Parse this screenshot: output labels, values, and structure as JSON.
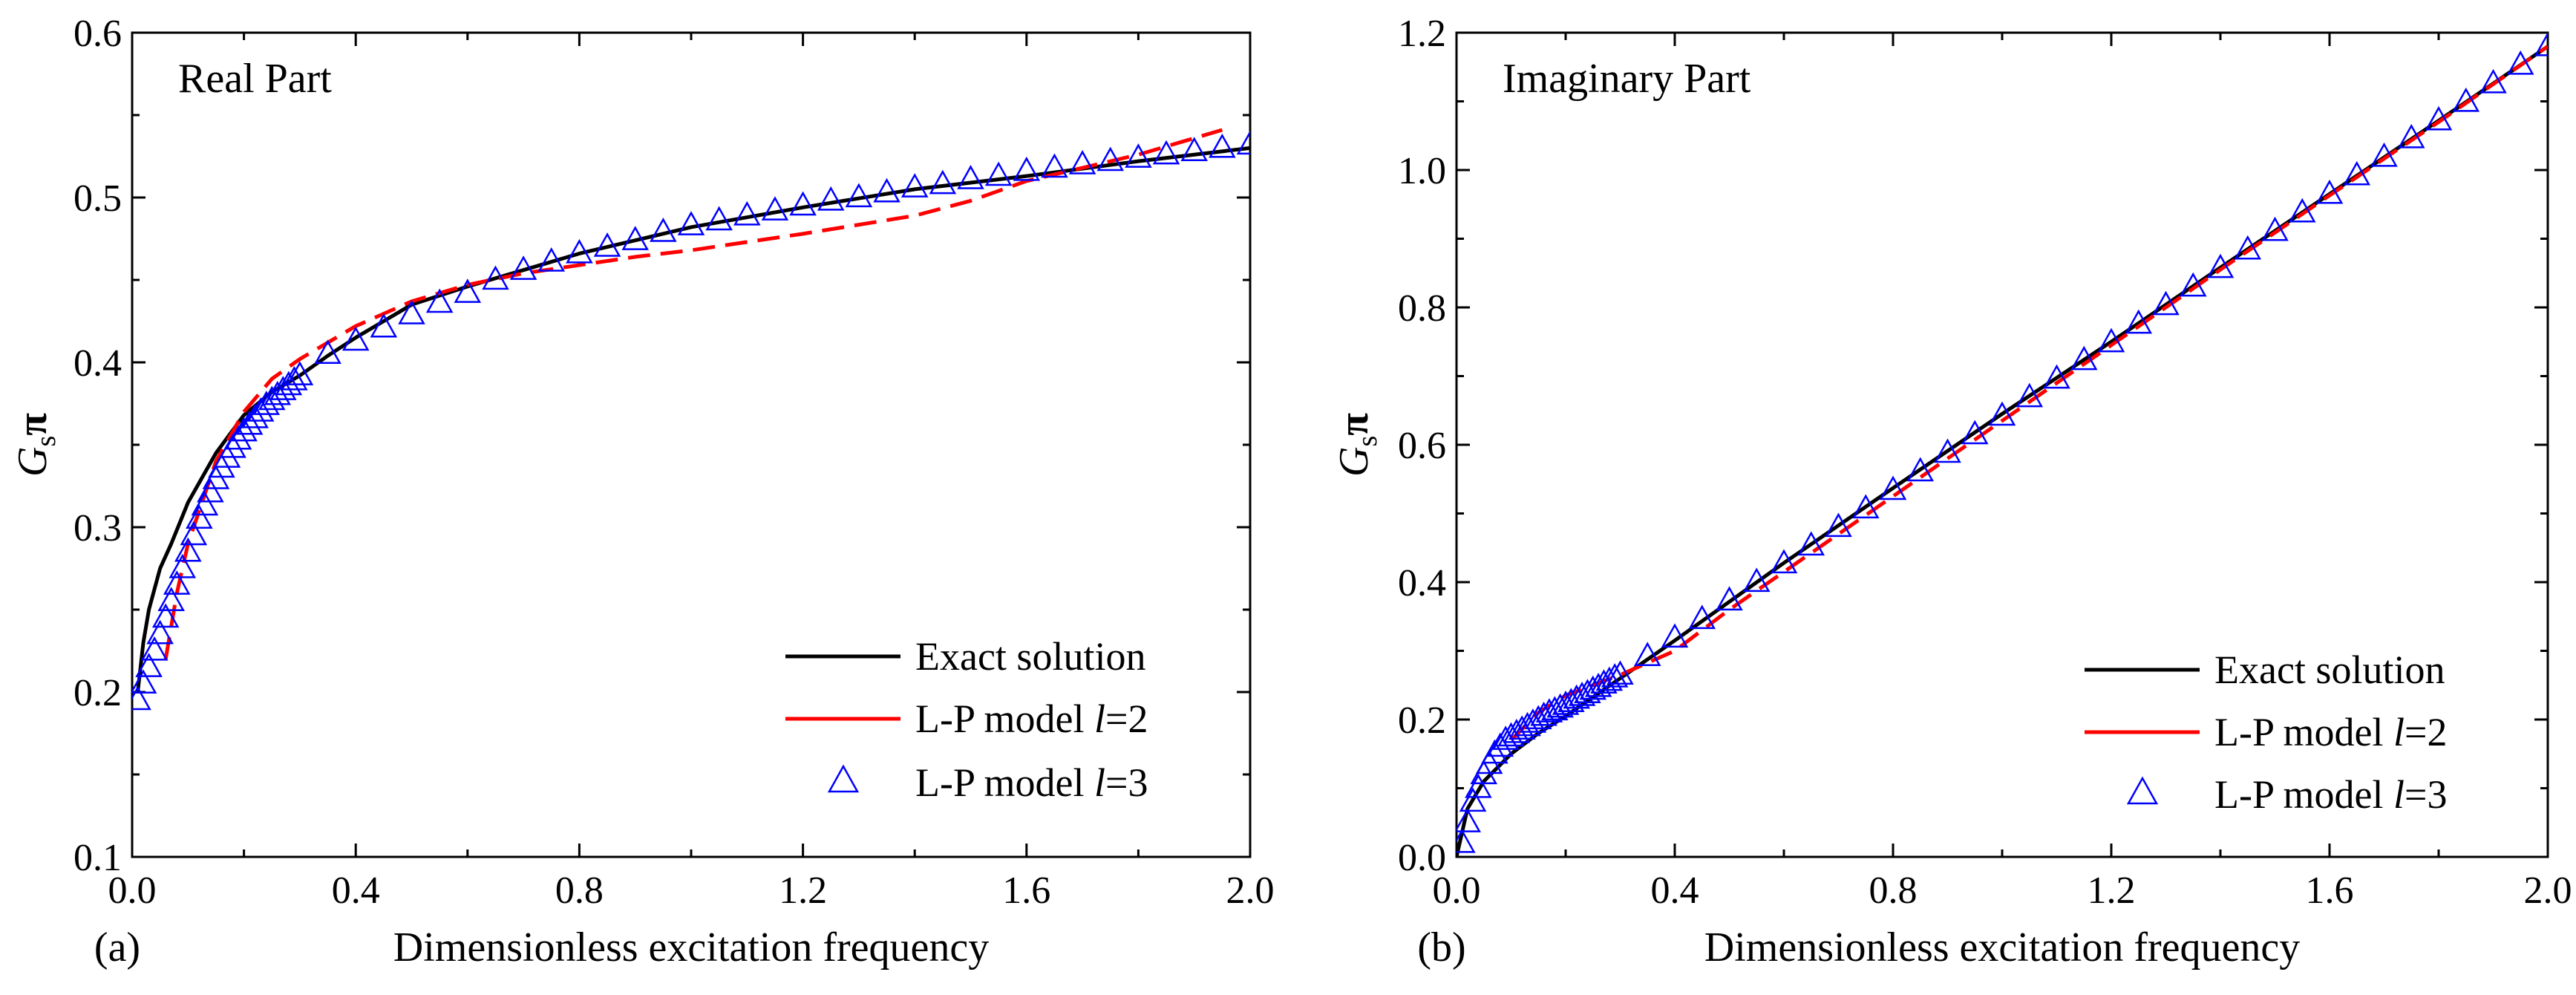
{
  "chart_data": [
    {
      "type": "line",
      "panel_label": "(a)",
      "annotation": "Real Part",
      "xlabel": "Dimensionless excitation frequency",
      "ylabel": "G",
      "ylabel_sub": "s",
      "ylabel_suffix": "π",
      "xlim": [
        0,
        2.0
      ],
      "ylim": [
        0.1,
        0.6
      ],
      "xticks": [
        "0.0",
        "0.4",
        "0.8",
        "1.2",
        "1.6",
        "2.0"
      ],
      "yticks": [
        "0.1",
        "0.2",
        "0.3",
        "0.4",
        "0.5",
        "0.6"
      ],
      "legend_position": "bottom-right",
      "series": [
        {
          "name": "Exact solution",
          "legend_prefix": "Exact solution",
          "legend_italic": "",
          "legend_suffix": "",
          "style": "solid",
          "color": "#000000",
          "x": [
            0.01,
            0.02,
            0.03,
            0.05,
            0.07,
            0.1,
            0.15,
            0.2,
            0.25,
            0.3,
            0.35,
            0.4,
            0.5,
            0.6,
            0.7,
            0.8,
            0.9,
            1.0,
            1.2,
            1.4,
            1.6,
            1.8,
            2.0
          ],
          "y": [
            0.2,
            0.23,
            0.25,
            0.275,
            0.29,
            0.315,
            0.345,
            0.368,
            0.382,
            0.392,
            0.404,
            0.415,
            0.435,
            0.446,
            0.456,
            0.466,
            0.474,
            0.482,
            0.494,
            0.505,
            0.513,
            0.522,
            0.53
          ]
        },
        {
          "name": "L-P model l=2",
          "legend_prefix": "L-P model ",
          "legend_italic": "l",
          "legend_suffix": "=2",
          "style": "dashed",
          "color": "#ff0000",
          "x": [
            0.06,
            0.08,
            0.1,
            0.15,
            0.2,
            0.25,
            0.3,
            0.4,
            0.5,
            0.6,
            0.7,
            0.8,
            0.9,
            1.0,
            1.2,
            1.4,
            1.5,
            1.6,
            1.7,
            1.8,
            1.95
          ],
          "y": [
            0.22,
            0.26,
            0.29,
            0.34,
            0.37,
            0.39,
            0.402,
            0.422,
            0.437,
            0.447,
            0.454,
            0.459,
            0.464,
            0.468,
            0.478,
            0.489,
            0.498,
            0.51,
            0.518,
            0.526,
            0.541
          ]
        },
        {
          "name": "L-P model l=3",
          "legend_prefix": "L-P model ",
          "legend_italic": "l",
          "legend_suffix": "=3",
          "style": "triangle",
          "color": "#0000ff",
          "x": [
            0.01,
            0.02,
            0.03,
            0.04,
            0.05,
            0.06,
            0.07,
            0.08,
            0.09,
            0.1,
            0.11,
            0.12,
            0.13,
            0.14,
            0.15,
            0.16,
            0.17,
            0.18,
            0.19,
            0.2,
            0.21,
            0.22,
            0.23,
            0.24,
            0.25,
            0.26,
            0.27,
            0.28,
            0.29,
            0.3,
            0.35,
            0.4,
            0.45,
            0.5,
            0.55,
            0.6,
            0.65,
            0.7,
            0.75,
            0.8,
            0.85,
            0.9,
            0.95,
            1.0,
            1.05,
            1.1,
            1.15,
            1.2,
            1.25,
            1.3,
            1.35,
            1.4,
            1.45,
            1.5,
            1.55,
            1.6,
            1.65,
            1.7,
            1.75,
            1.8,
            1.85,
            1.9,
            1.95,
            2.0
          ],
          "y": [
            0.195,
            0.205,
            0.215,
            0.225,
            0.235,
            0.245,
            0.255,
            0.265,
            0.275,
            0.285,
            0.295,
            0.305,
            0.313,
            0.321,
            0.329,
            0.336,
            0.342,
            0.348,
            0.353,
            0.358,
            0.362,
            0.366,
            0.37,
            0.374,
            0.377,
            0.38,
            0.383,
            0.386,
            0.389,
            0.392,
            0.405,
            0.413,
            0.421,
            0.429,
            0.436,
            0.442,
            0.45,
            0.456,
            0.461,
            0.466,
            0.47,
            0.474,
            0.479,
            0.483,
            0.486,
            0.489,
            0.492,
            0.495,
            0.498,
            0.5,
            0.503,
            0.506,
            0.508,
            0.511,
            0.513,
            0.516,
            0.518,
            0.52,
            0.522,
            0.524,
            0.526,
            0.528,
            0.53,
            0.532
          ]
        }
      ]
    },
    {
      "type": "line",
      "panel_label": "(b)",
      "annotation": "Imaginary Part",
      "xlabel": "Dimensionless excitation frequency",
      "ylabel": "G",
      "ylabel_sub": "s",
      "ylabel_suffix": "π",
      "xlim": [
        0,
        2.0
      ],
      "ylim": [
        0,
        1.2
      ],
      "xticks": [
        "0.0",
        "0.4",
        "0.8",
        "1.2",
        "1.6",
        "2.0"
      ],
      "yticks": [
        "0.0",
        "0.2",
        "0.4",
        "0.6",
        "0.8",
        "1.0",
        "1.2"
      ],
      "legend_position": "bottom-right",
      "series": [
        {
          "name": "Exact solution",
          "legend_prefix": "Exact solution",
          "legend_italic": "",
          "legend_suffix": "",
          "style": "solid",
          "color": "#000000",
          "x": [
            0.0,
            0.02,
            0.05,
            0.1,
            0.15,
            0.2,
            0.3,
            0.4,
            0.6,
            0.8,
            1.0,
            1.2,
            1.4,
            1.6,
            1.8,
            2.0
          ],
          "y": [
            0.0,
            0.07,
            0.11,
            0.15,
            0.18,
            0.205,
            0.26,
            0.315,
            0.428,
            0.537,
            0.645,
            0.75,
            0.858,
            0.965,
            1.072,
            1.18
          ]
        },
        {
          "name": "L-P model l=2",
          "legend_prefix": "L-P model ",
          "legend_italic": "l",
          "legend_suffix": "=2",
          "style": "dashed",
          "color": "#ff0000",
          "x": [
            0.1,
            0.15,
            0.2,
            0.3,
            0.4,
            0.5,
            0.6,
            0.7,
            0.8,
            0.9,
            1.0,
            1.2,
            1.4,
            1.6,
            1.8,
            2.0
          ],
          "y": [
            0.17,
            0.21,
            0.235,
            0.265,
            0.3,
            0.36,
            0.415,
            0.47,
            0.525,
            0.58,
            0.635,
            0.745,
            0.855,
            0.963,
            1.07,
            1.18
          ]
        },
        {
          "name": "L-P model l=3",
          "legend_prefix": "L-P model ",
          "legend_italic": "l",
          "legend_suffix": "=3",
          "style": "triangle",
          "color": "#0000ff",
          "x": [
            0.01,
            0.02,
            0.03,
            0.04,
            0.05,
            0.06,
            0.07,
            0.08,
            0.09,
            0.1,
            0.11,
            0.12,
            0.13,
            0.14,
            0.15,
            0.16,
            0.17,
            0.18,
            0.19,
            0.2,
            0.21,
            0.22,
            0.23,
            0.24,
            0.25,
            0.26,
            0.27,
            0.28,
            0.29,
            0.3,
            0.35,
            0.4,
            0.45,
            0.5,
            0.55,
            0.6,
            0.65,
            0.7,
            0.75,
            0.8,
            0.85,
            0.9,
            0.95,
            1.0,
            1.05,
            1.1,
            1.15,
            1.2,
            1.25,
            1.3,
            1.35,
            1.4,
            1.45,
            1.5,
            1.55,
            1.6,
            1.65,
            1.7,
            1.75,
            1.8,
            1.85,
            1.9,
            1.95,
            2.0
          ],
          "y": [
            0.02,
            0.05,
            0.08,
            0.1,
            0.12,
            0.135,
            0.15,
            0.16,
            0.17,
            0.175,
            0.18,
            0.185,
            0.19,
            0.195,
            0.2,
            0.205,
            0.21,
            0.213,
            0.217,
            0.221,
            0.225,
            0.23,
            0.234,
            0.238,
            0.243,
            0.247,
            0.252,
            0.256,
            0.261,
            0.265,
            0.292,
            0.319,
            0.346,
            0.373,
            0.4,
            0.427,
            0.453,
            0.48,
            0.507,
            0.534,
            0.561,
            0.588,
            0.615,
            0.642,
            0.669,
            0.696,
            0.723,
            0.749,
            0.776,
            0.803,
            0.83,
            0.857,
            0.884,
            0.911,
            0.938,
            0.965,
            0.992,
            1.019,
            1.046,
            1.072,
            1.099,
            1.126,
            1.153,
            1.18
          ]
        }
      ]
    }
  ]
}
